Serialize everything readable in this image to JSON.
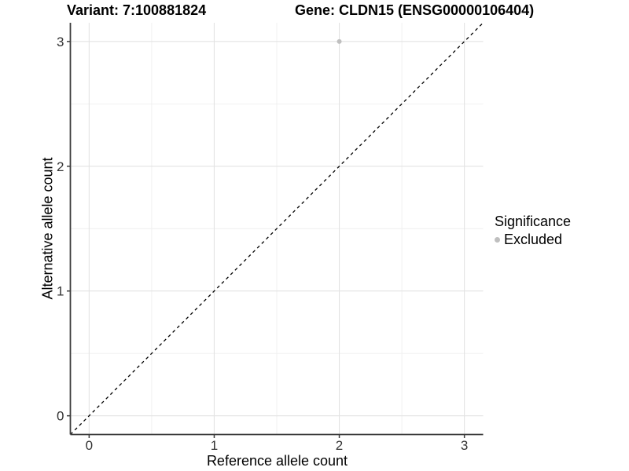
{
  "chart_data": {
    "type": "scatter",
    "title_left": "Variant: 7:100881824",
    "title_right": "Gene: CLDN15 (ENSG00000106404)",
    "xlabel": "Reference allele count",
    "ylabel": "Alternative allele count",
    "xlim": [
      -0.15,
      3.15
    ],
    "ylim": [
      -0.15,
      3.15
    ],
    "x_ticks": [
      0,
      1,
      2,
      3
    ],
    "y_ticks": [
      0,
      1,
      2,
      3
    ],
    "grid": "major+minor",
    "legend_position": "right",
    "series": [
      {
        "name": "Excluded",
        "color": "#bfbfbf",
        "points": [
          [
            2,
            3
          ]
        ]
      }
    ],
    "reference_line": {
      "slope": 1,
      "intercept": 0,
      "style": "dashed",
      "color": "#000000"
    },
    "legend": {
      "title": "Significance",
      "items": [
        {
          "label": "Excluded",
          "color": "#bfbfbf"
        }
      ]
    },
    "style": {
      "grid_major_color": "#e3e3e3",
      "grid_minor_color": "#efefef",
      "axis_line_color": "#3c3c3c",
      "tick_label_color": "#333333",
      "point_radius_px": 3
    }
  }
}
